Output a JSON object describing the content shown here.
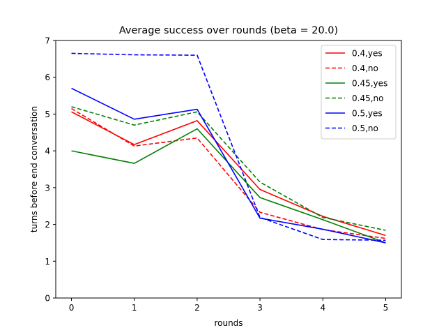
{
  "chart_data": {
    "type": "line",
    "title": "Average success over rounds (beta = 20.0)",
    "xlabel": "rounds",
    "ylabel": "turns before end conversation",
    "x": [
      0,
      1,
      2,
      3,
      4,
      5
    ],
    "xticks": [
      "0",
      "1",
      "2",
      "3",
      "4",
      "5"
    ],
    "yticks": [
      "0",
      "1",
      "2",
      "3",
      "4",
      "5",
      "6",
      "7"
    ],
    "xlim": [
      -0.25,
      5.25
    ],
    "ylim": [
      0,
      7
    ],
    "grid": false,
    "legend_position": "top-right",
    "series": [
      {
        "name": "0.4,yes",
        "color": "#ff0000",
        "dashed": false,
        "values": [
          5.06,
          4.17,
          4.82,
          2.95,
          2.22,
          1.7
        ]
      },
      {
        "name": "0.4,no",
        "color": "#ff0000",
        "dashed": true,
        "values": [
          5.15,
          4.13,
          4.35,
          2.33,
          1.86,
          1.62
        ]
      },
      {
        "name": "0.45,yes",
        "color": "#008000",
        "dashed": false,
        "values": [
          4.0,
          3.66,
          4.6,
          2.73,
          2.13,
          1.5
        ]
      },
      {
        "name": "0.45,no",
        "color": "#008000",
        "dashed": true,
        "values": [
          5.2,
          4.7,
          5.06,
          3.15,
          2.19,
          1.84
        ]
      },
      {
        "name": "0.5,yes",
        "color": "#0000ff",
        "dashed": false,
        "values": [
          5.7,
          4.86,
          5.13,
          2.17,
          1.87,
          1.5
        ]
      },
      {
        "name": "0.5,no",
        "color": "#0000ff",
        "dashed": true,
        "values": [
          6.65,
          6.61,
          6.6,
          2.19,
          1.59,
          1.57
        ]
      }
    ]
  }
}
